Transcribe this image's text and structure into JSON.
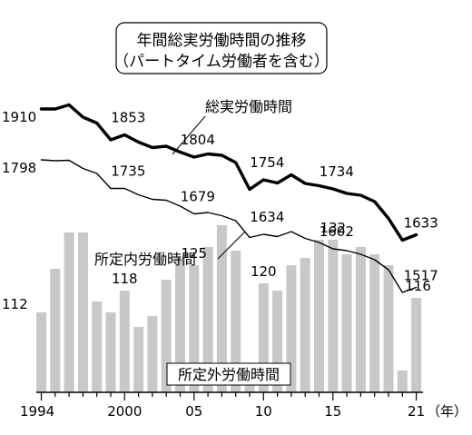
{
  "chart_data": {
    "type": "line",
    "title": "年間総実労働時間の推移",
    "subtitle": "（パートタイム労働者を含む）",
    "x_unit": "（年）",
    "x": [
      1994,
      1995,
      1996,
      1997,
      1998,
      1999,
      2000,
      2001,
      2002,
      2003,
      2004,
      2005,
      2006,
      2007,
      2008,
      2009,
      2010,
      2011,
      2012,
      2013,
      2014,
      2015,
      2016,
      2017,
      2018,
      2019,
      2020,
      2021
    ],
    "x_tick_labels": [
      "1994",
      "2000",
      "05",
      "10",
      "15",
      "21"
    ],
    "x_tick_years": [
      1994,
      2000,
      2005,
      2010,
      2015,
      2021
    ],
    "series": [
      {
        "name": "総実労働時間",
        "kind": "line",
        "style": "bold",
        "values": [
          1910,
          1910,
          1919,
          1892,
          1879,
          1842,
          1853,
          1837,
          1825,
          1828,
          1815,
          1804,
          1811,
          1808,
          1792,
          1733,
          1754,
          1747,
          1765,
          1746,
          1741,
          1734,
          1724,
          1720,
          1706,
          1669,
          1621,
          1633
        ],
        "labels": [
          {
            "year": 1994,
            "text": "1910"
          },
          {
            "year": 2000,
            "text": "1853"
          },
          {
            "year": 2005,
            "text": "1804"
          },
          {
            "year": 2010,
            "text": "1754"
          },
          {
            "year": 2015,
            "text": "1734"
          },
          {
            "year": 2021,
            "text": "1633"
          }
        ]
      },
      {
        "name": "所定内労働時間",
        "kind": "line",
        "style": "thin",
        "values": [
          1798,
          1796,
          1797,
          1779,
          1768,
          1735,
          1735,
          1721,
          1711,
          1709,
          1696,
          1679,
          1682,
          1675,
          1664,
          1627,
          1634,
          1629,
          1640,
          1625,
          1616,
          1602,
          1598,
          1590,
          1578,
          1556,
          1506,
          1517
        ],
        "labels": [
          {
            "year": 1994,
            "text": "1798"
          },
          {
            "year": 2000,
            "text": "1735"
          },
          {
            "year": 2005,
            "text": "1679"
          },
          {
            "year": 2010,
            "text": "1634"
          },
          {
            "year": 2015,
            "text": "1602"
          },
          {
            "year": 2021,
            "text": "1517"
          }
        ]
      },
      {
        "name": "所定外労働時間",
        "kind": "bar",
        "values": [
          112,
          124,
          134,
          134,
          115,
          112,
          118,
          108,
          111,
          121,
          127,
          125,
          130,
          136,
          129,
          98,
          120,
          118,
          125,
          127,
          132,
          132,
          128,
          130,
          128,
          125,
          96,
          116
        ],
        "labels": [
          {
            "year": 1994,
            "text": "112"
          },
          {
            "year": 2000,
            "text": "118"
          },
          {
            "year": 2005,
            "text": "125"
          },
          {
            "year": 2010,
            "text": "120"
          },
          {
            "year": 2015,
            "text": "132"
          },
          {
            "year": 2021,
            "text": "116"
          }
        ]
      }
    ],
    "colors": {
      "line": "#000000",
      "bar": "#c8c8c8",
      "axis": "#000000"
    }
  }
}
